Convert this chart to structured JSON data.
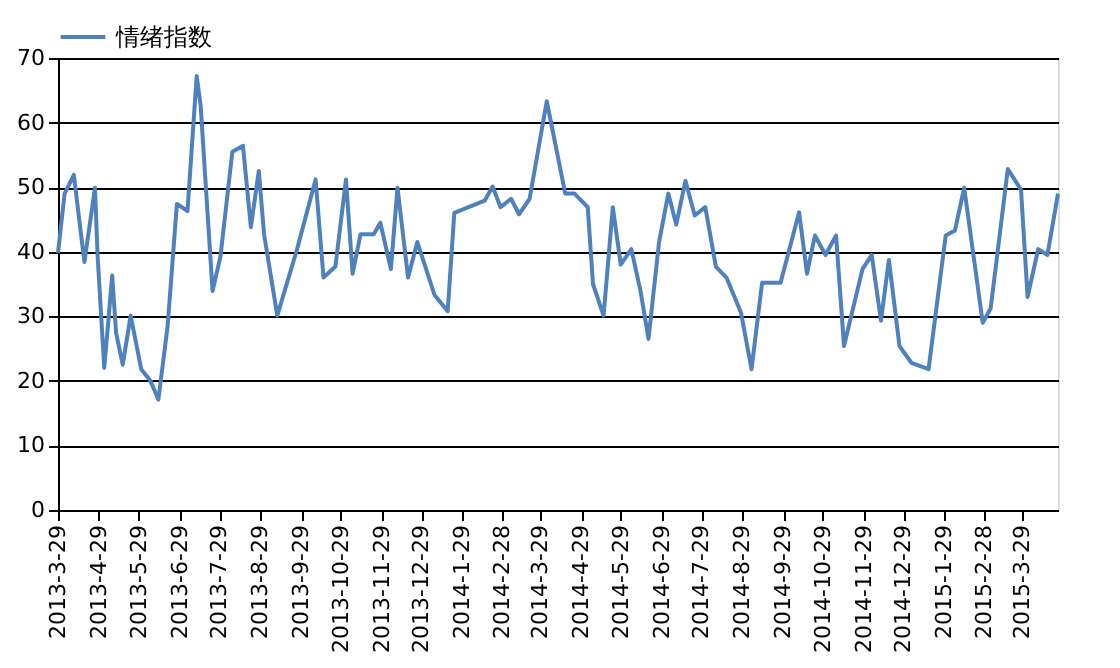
{
  "chart_data": {
    "type": "line",
    "legend": "top left",
    "grid": "y",
    "marker": "none",
    "line_style": "solid",
    "x": [
      "2013-03-29",
      "2013-04-03",
      "2013-04-10",
      "2013-04-15",
      "2013-04-18",
      "2013-04-26",
      "2013-04-28",
      "2013-05-03",
      "2013-05-06",
      "2013-05-09",
      "2013-05-12",
      "2013-05-17",
      "2013-05-23",
      "2013-05-31",
      "2013-06-07",
      "2013-06-13",
      "2013-06-20",
      "2013-06-27",
      "2013-07-05",
      "2013-07-12",
      "2013-07-15",
      "2013-07-24",
      "2013-07-30",
      "2013-08-08",
      "2013-08-16",
      "2013-08-22",
      "2013-08-28",
      "2013-09-01",
      "2013-09-11",
      "2013-09-26",
      "2013-10-10",
      "2013-10-16",
      "2013-10-25",
      "2013-11-02",
      "2013-11-07",
      "2013-11-13",
      "2013-11-23",
      "2013-11-28",
      "2013-12-06",
      "2013-12-11",
      "2013-12-19",
      "2013-12-26",
      "2014-01-08",
      "2014-01-18",
      "2014-01-23",
      "2014-02-15",
      "2014-02-21",
      "2014-02-27",
      "2014-03-07",
      "2014-03-13",
      "2014-03-21",
      "2014-04-03",
      "2014-04-17",
      "2014-04-24",
      "2014-05-04",
      "2014-05-08",
      "2014-05-16",
      "2014-05-23",
      "2014-05-29",
      "2014-06-06",
      "2014-06-13",
      "2014-06-19",
      "2014-06-27",
      "2014-07-04",
      "2014-07-10",
      "2014-07-17",
      "2014-07-24",
      "2014-08-01",
      "2014-08-09",
      "2014-08-17",
      "2014-08-28",
      "2014-09-05",
      "2014-09-13",
      "2014-09-27",
      "2014-10-11",
      "2014-10-17",
      "2014-10-23",
      "2014-10-31",
      "2014-11-08",
      "2014-11-14",
      "2014-11-28",
      "2014-12-05",
      "2014-12-12",
      "2014-12-18",
      "2014-12-26",
      "2015-01-04",
      "2015-01-17",
      "2015-01-30",
      "2015-02-06",
      "2015-02-13",
      "2015-02-27",
      "2015-03-05",
      "2015-03-18",
      "2015-03-28",
      "2015-04-02",
      "2015-04-10",
      "2015-04-17",
      "2015-04-25"
    ],
    "series": [
      {
        "name": "情绪指数",
        "color": "#4f81bd",
        "values": [
          39.8,
          49,
          51.9,
          43.4,
          38.4,
          49.9,
          39.3,
          22,
          29,
          36.3,
          27.4,
          22.5,
          30.1,
          21.8,
          20,
          17.1,
          28.5,
          47.4,
          46.3,
          67.2,
          62.6,
          33.9,
          39.3,
          55.5,
          56.4,
          43.8,
          52.5,
          42.7,
          30.1,
          40.4,
          51.2,
          36,
          37.7,
          51.2,
          36.6,
          42.7,
          42.7,
          44.5,
          37.3,
          49.9,
          36,
          41.5,
          33.3,
          30.8,
          46,
          47.9,
          50.1,
          46.9,
          48.2,
          45.8,
          48.2,
          63.3,
          49,
          49,
          46.9,
          35,
          30.1,
          46.9,
          38,
          40.4,
          33.9,
          26.5,
          41.5,
          49,
          44.2,
          51,
          45.6,
          46.9,
          37.7,
          36,
          30.6,
          21.8,
          35.2,
          35.2,
          46.1,
          36.6,
          42.5,
          39.5,
          42.5,
          25.4,
          37.3,
          39.5,
          29.3,
          38.7,
          25.4,
          22.8,
          21.8,
          42.5,
          43.3,
          49.9,
          29,
          31.2,
          52.8,
          49.6,
          33,
          40.4,
          39.5,
          49
        ]
      }
    ],
    "xlim": [
      "2013-03-29",
      "2015-04-25"
    ],
    "xticks": [
      {
        "value": "2013-03-29",
        "label": "2013-3-29"
      },
      {
        "value": "2013-04-29",
        "label": "2013-4-29"
      },
      {
        "value": "2013-05-29",
        "label": "2013-5-29"
      },
      {
        "value": "2013-06-29",
        "label": "2013-6-29"
      },
      {
        "value": "2013-07-29",
        "label": "2013-7-29"
      },
      {
        "value": "2013-08-29",
        "label": "2013-8-29"
      },
      {
        "value": "2013-09-29",
        "label": "2013-9-29"
      },
      {
        "value": "2013-10-29",
        "label": "2013-10-29"
      },
      {
        "value": "2013-11-29",
        "label": "2013-11-29"
      },
      {
        "value": "2013-12-29",
        "label": "2013-12-29"
      },
      {
        "value": "2014-01-29",
        "label": "2014-1-29"
      },
      {
        "value": "2014-02-28",
        "label": "2014-2-28"
      },
      {
        "value": "2014-03-29",
        "label": "2014-3-29"
      },
      {
        "value": "2014-04-29",
        "label": "2014-4-29"
      },
      {
        "value": "2014-05-29",
        "label": "2014-5-29"
      },
      {
        "value": "2014-06-29",
        "label": "2014-6-29"
      },
      {
        "value": "2014-07-29",
        "label": "2014-7-29"
      },
      {
        "value": "2014-08-29",
        "label": "2014-8-29"
      },
      {
        "value": "2014-09-29",
        "label": "2014-9-29"
      },
      {
        "value": "2014-10-29",
        "label": "2014-10-29"
      },
      {
        "value": "2014-11-29",
        "label": "2014-11-29"
      },
      {
        "value": "2014-12-29",
        "label": "2014-12-29"
      },
      {
        "value": "2015-01-29",
        "label": "2015-1-29"
      },
      {
        "value": "2015-02-28",
        "label": "2015-2-28"
      },
      {
        "value": "2015-03-29",
        "label": "2015-3-29"
      }
    ],
    "ylim": [
      0,
      70
    ],
    "yticks": [
      0,
      10,
      20,
      30,
      40,
      50,
      60,
      70
    ]
  }
}
